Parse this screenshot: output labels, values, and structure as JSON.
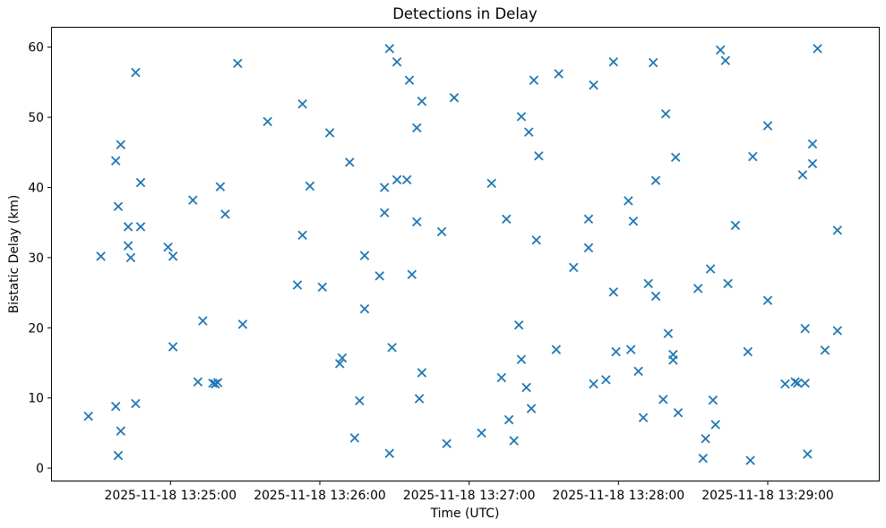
{
  "chart_data": {
    "type": "scatter",
    "title": "Detections in Delay",
    "xlabel": "Time (UTC)",
    "ylabel": "Bistatic Delay (km)",
    "date": "2025-11-18",
    "marker": "x",
    "marker_color": "#1f77b4",
    "grid": false,
    "legend": "none",
    "x_ticks": [
      {
        "label": "2025-11-18 13:25:00",
        "time": "13:25:00"
      },
      {
        "label": "2025-11-18 13:26:00",
        "time": "13:26:00"
      },
      {
        "label": "2025-11-18 13:27:00",
        "time": "13:27:00"
      },
      {
        "label": "2025-11-18 13:28:00",
        "time": "13:28:00"
      },
      {
        "label": "2025-11-18 13:29:00",
        "time": "13:29:00"
      }
    ],
    "y_ticks": [
      0,
      10,
      20,
      30,
      40,
      50,
      60
    ],
    "xlim_times": [
      "13:24:12",
      "13:29:45"
    ],
    "ylim": [
      -1.9,
      62.9
    ],
    "points_time_delay": [
      [
        "13:24:27",
        7.4
      ],
      [
        "13:24:32",
        30.2
      ],
      [
        "13:24:38",
        43.8
      ],
      [
        "13:24:38",
        8.8
      ],
      [
        "13:24:39",
        37.3
      ],
      [
        "13:24:39",
        1.8
      ],
      [
        "13:24:40",
        46.1
      ],
      [
        "13:24:40",
        5.3
      ],
      [
        "13:24:43",
        34.4
      ],
      [
        "13:24:43",
        31.7
      ],
      [
        "13:24:44",
        30.0
      ],
      [
        "13:24:46",
        56.4
      ],
      [
        "13:24:46",
        9.2
      ],
      [
        "13:24:48",
        40.7
      ],
      [
        "13:24:48",
        34.4
      ],
      [
        "13:24:59",
        31.5
      ],
      [
        "13:25:01",
        30.2
      ],
      [
        "13:25:01",
        17.3
      ],
      [
        "13:25:09",
        38.2
      ],
      [
        "13:25:11",
        12.3
      ],
      [
        "13:25:13",
        21.0
      ],
      [
        "13:25:17",
        12.1
      ],
      [
        "13:25:18",
        12.0
      ],
      [
        "13:25:19",
        12.2
      ],
      [
        "13:25:20",
        40.1
      ],
      [
        "13:25:22",
        36.2
      ],
      [
        "13:25:27",
        57.7
      ],
      [
        "13:25:29",
        20.5
      ],
      [
        "13:25:39",
        49.4
      ],
      [
        "13:25:51",
        26.1
      ],
      [
        "13:25:53",
        51.9
      ],
      [
        "13:25:53",
        33.2
      ],
      [
        "13:25:56",
        40.2
      ],
      [
        "13:26:01",
        25.8
      ],
      [
        "13:26:04",
        47.8
      ],
      [
        "13:26:08",
        14.9
      ],
      [
        "13:26:09",
        15.7
      ],
      [
        "13:26:12",
        43.6
      ],
      [
        "13:26:14",
        4.3
      ],
      [
        "13:26:16",
        9.6
      ],
      [
        "13:26:18",
        30.3
      ],
      [
        "13:26:18",
        22.7
      ],
      [
        "13:26:24",
        27.4
      ],
      [
        "13:26:26",
        40.0
      ],
      [
        "13:26:26",
        36.4
      ],
      [
        "13:26:28",
        59.8
      ],
      [
        "13:26:28",
        2.1
      ],
      [
        "13:26:29",
        17.2
      ],
      [
        "13:26:31",
        57.9
      ],
      [
        "13:26:31",
        41.1
      ],
      [
        "13:26:35",
        41.1
      ],
      [
        "13:26:36",
        55.3
      ],
      [
        "13:26:37",
        27.6
      ],
      [
        "13:26:39",
        48.5
      ],
      [
        "13:26:39",
        35.1
      ],
      [
        "13:26:40",
        9.9
      ],
      [
        "13:26:41",
        52.3
      ],
      [
        "13:26:41",
        13.6
      ],
      [
        "13:26:49",
        33.7
      ],
      [
        "13:26:51",
        3.5
      ],
      [
        "13:26:54",
        52.8
      ],
      [
        "13:27:05",
        5.0
      ],
      [
        "13:27:09",
        40.6
      ],
      [
        "13:27:13",
        12.9
      ],
      [
        "13:27:15",
        35.5
      ],
      [
        "13:27:16",
        6.9
      ],
      [
        "13:27:18",
        3.9
      ],
      [
        "13:27:20",
        20.4
      ],
      [
        "13:27:21",
        50.1
      ],
      [
        "13:27:21",
        15.5
      ],
      [
        "13:27:23",
        11.5
      ],
      [
        "13:27:24",
        47.9
      ],
      [
        "13:27:25",
        8.5
      ],
      [
        "13:27:26",
        55.3
      ],
      [
        "13:27:27",
        32.5
      ],
      [
        "13:27:28",
        44.5
      ],
      [
        "13:27:35",
        16.9
      ],
      [
        "13:27:36",
        56.2
      ],
      [
        "13:27:42",
        28.6
      ],
      [
        "13:27:48",
        35.5
      ],
      [
        "13:27:48",
        31.4
      ],
      [
        "13:27:50",
        54.6
      ],
      [
        "13:27:50",
        12.0
      ],
      [
        "13:27:55",
        12.6
      ],
      [
        "13:27:58",
        57.9
      ],
      [
        "13:27:58",
        25.1
      ],
      [
        "13:27:59",
        16.6
      ],
      [
        "13:28:04",
        38.1
      ],
      [
        "13:28:05",
        16.9
      ],
      [
        "13:28:06",
        35.2
      ],
      [
        "13:28:08",
        13.8
      ],
      [
        "13:28:10",
        7.2
      ],
      [
        "13:28:12",
        26.3
      ],
      [
        "13:28:14",
        57.8
      ],
      [
        "13:28:15",
        24.5
      ],
      [
        "13:28:15",
        41.0
      ],
      [
        "13:28:18",
        9.8
      ],
      [
        "13:28:19",
        50.5
      ],
      [
        "13:28:20",
        19.2
      ],
      [
        "13:28:22",
        16.2
      ],
      [
        "13:28:22",
        15.4
      ],
      [
        "13:28:23",
        44.3
      ],
      [
        "13:28:24",
        7.9
      ],
      [
        "13:28:32",
        25.6
      ],
      [
        "13:28:34",
        1.4
      ],
      [
        "13:28:35",
        4.2
      ],
      [
        "13:28:37",
        28.4
      ],
      [
        "13:28:38",
        9.7
      ],
      [
        "13:28:39",
        6.2
      ],
      [
        "13:28:41",
        59.6
      ],
      [
        "13:28:43",
        58.1
      ],
      [
        "13:28:44",
        26.3
      ],
      [
        "13:28:47",
        34.6
      ],
      [
        "13:28:52",
        16.6
      ],
      [
        "13:28:53",
        1.1
      ],
      [
        "13:28:54",
        44.4
      ],
      [
        "13:29:00",
        48.8
      ],
      [
        "13:29:00",
        23.9
      ],
      [
        "13:29:07",
        12.0
      ],
      [
        "13:29:11",
        12.3
      ],
      [
        "13:29:12",
        12.1
      ],
      [
        "13:29:14",
        41.8
      ],
      [
        "13:29:15",
        12.1
      ],
      [
        "13:29:15",
        19.9
      ],
      [
        "13:29:16",
        2.0
      ],
      [
        "13:29:18",
        46.2
      ],
      [
        "13:29:18",
        43.4
      ],
      [
        "13:29:20",
        59.8
      ],
      [
        "13:29:23",
        16.8
      ],
      [
        "13:29:28",
        33.9
      ],
      [
        "13:29:28",
        19.6
      ]
    ]
  }
}
